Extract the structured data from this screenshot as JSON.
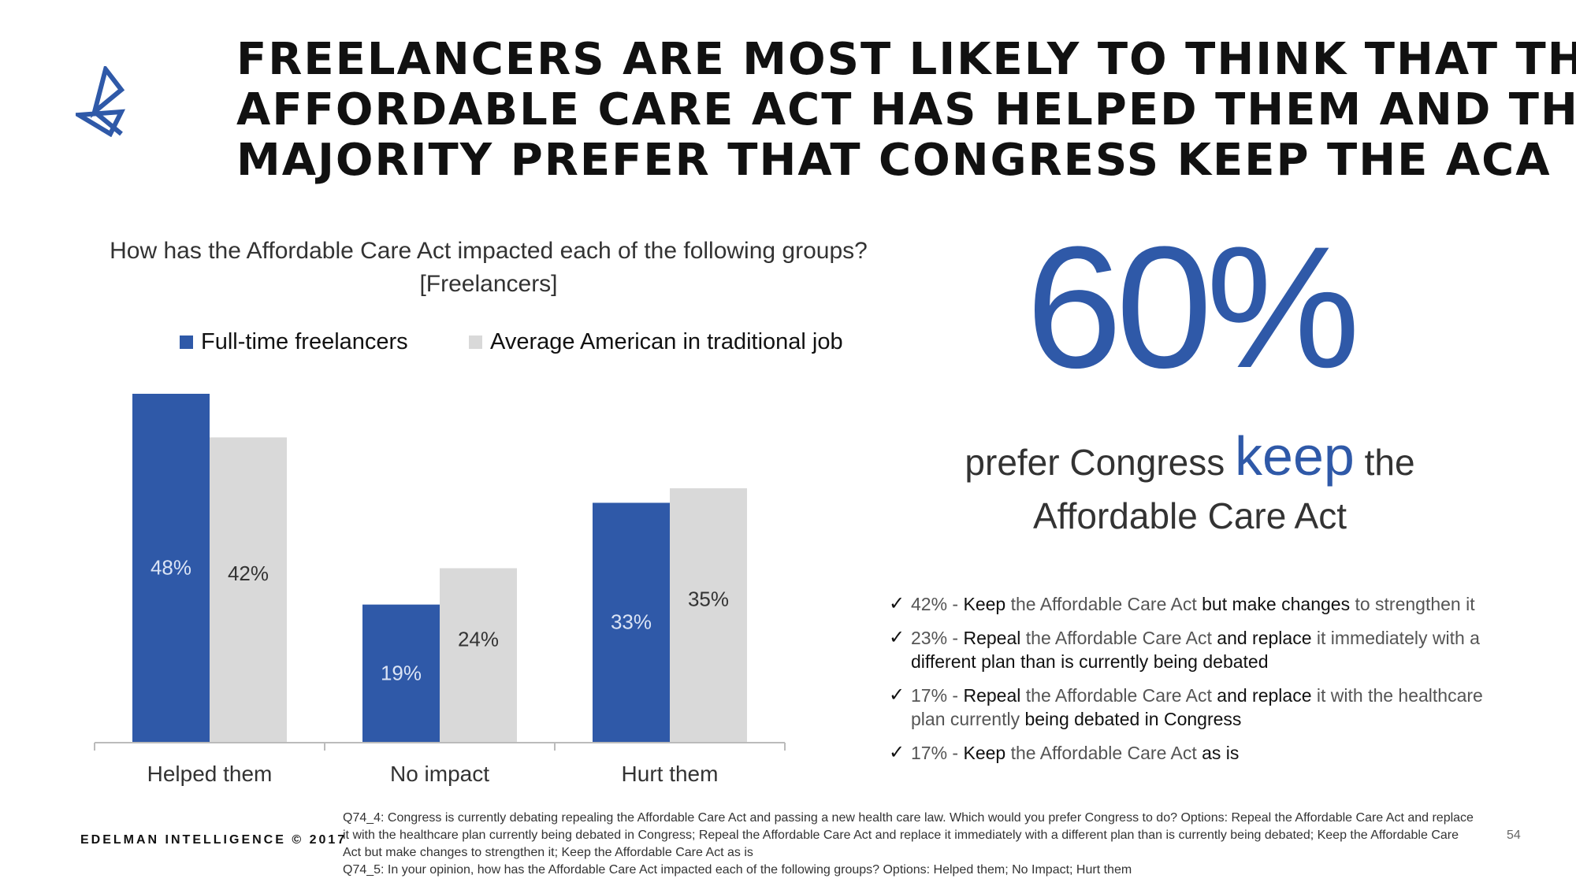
{
  "headline": [
    "FREELANCERS ARE MOST LIKELY TO THINK THAT THE",
    "AFFORDABLE CARE ACT HAS HELPED THEM AND THE",
    "MAJORITY PREFER THAT CONGRESS KEEP THE ACA"
  ],
  "question": {
    "line1": "How has the Affordable Care Act impacted each of the following groups?",
    "line2": "[Freelancers]"
  },
  "chart_data": {
    "type": "bar",
    "categories": [
      "Helped them",
      "No impact",
      "Hurt them"
    ],
    "series": [
      {
        "name": "Full-time freelancers",
        "color": "#2f59a8",
        "values": [
          48,
          19,
          33
        ],
        "labels": [
          "48%",
          "19%",
          "33%"
        ]
      },
      {
        "name": "Average American in traditional job",
        "color": "#d9d9d9",
        "values": [
          42,
          24,
          35
        ],
        "labels": [
          "42%",
          "24%",
          "35%"
        ]
      }
    ],
    "ylim": [
      0,
      48
    ],
    "grid": false,
    "legend": "top"
  },
  "stat": {
    "value": "60%",
    "caption_pre": "prefer Congress",
    "caption_keyword": "keep",
    "caption_post": "the",
    "caption_line2": "Affordable Care Act"
  },
  "options": [
    {
      "pct": "42% -",
      "parts": [
        {
          "t": "Keep",
          "s": true
        },
        {
          "t": " the Affordable Care Act ",
          "s": false
        },
        {
          "t": "but make changes",
          "s": true
        },
        {
          "t": " to strengthen it",
          "s": false
        }
      ]
    },
    {
      "pct": "23% -",
      "parts": [
        {
          "t": "Repeal",
          "s": true
        },
        {
          "t": " the Affordable Care Act ",
          "s": false
        },
        {
          "t": "and replace",
          "s": true
        },
        {
          "t": " it immediately with a ",
          "s": false
        },
        {
          "t": "different plan than is currently being debated",
          "s": true
        }
      ]
    },
    {
      "pct": "17% -",
      "parts": [
        {
          "t": "Repeal",
          "s": true
        },
        {
          "t": " the Affordable Care Act ",
          "s": false
        },
        {
          "t": "and replace",
          "s": true
        },
        {
          "t": " it with the healthcare plan currently ",
          "s": false
        },
        {
          "t": "being debated in Congress",
          "s": true
        }
      ]
    },
    {
      "pct": "17% -",
      "parts": [
        {
          "t": "Keep",
          "s": true
        },
        {
          "t": " the Affordable Care Act ",
          "s": false
        },
        {
          "t": "as is",
          "s": true
        }
      ]
    }
  ],
  "footer": {
    "brand": "EDELMAN INTELLIGENCE © 2017",
    "note1": "Q74_4: Congress is currently debating repealing the Affordable Care Act and passing a new health care law. Which would you prefer Congress to do? Options: Repeal the Affordable Care Act and replace it with the healthcare plan currently being debated in Congress; Repeal the Affordable Care Act and replace it immediately with a different plan than is currently being debated; Keep the Affordable Care Act but make changes to strengthen it; Keep the Affordable Care Act as is",
    "note2": "Q74_5: In your opinion, how has the Affordable Care Act impacted each of the following groups? Options: Helped them; No Impact; Hurt them",
    "page": "54"
  },
  "colors": {
    "accent": "#2f59a8",
    "secondary": "#d9d9d9"
  },
  "icons": {
    "logo": "edelman-logo-icon",
    "check": "checkmark-icon"
  }
}
